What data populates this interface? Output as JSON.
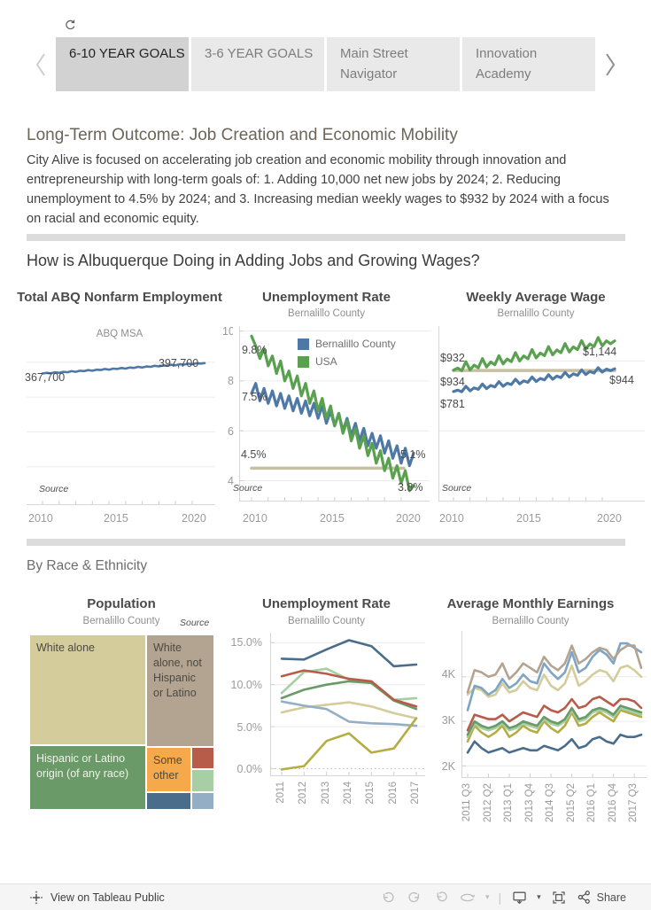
{
  "tabs": {
    "items": [
      {
        "label": "6-10 YEAR GOALS",
        "active": true
      },
      {
        "label": "3-6 YEAR GOALS",
        "active": false
      },
      {
        "label": "Main Street Navigator",
        "active": false
      },
      {
        "label": "Innovation Academy",
        "active": false
      }
    ]
  },
  "intro": {
    "title": "Long-Term Outcome: Job Creation and Economic Mobility",
    "body": "City Alive is focused on accelerating job creation and economic mobility through innovation and entrepreneurship with long-term goals of:  1. Adding 10,000 net new jobs by 2024; 2. Reducing unemployment to 4.5% by 2024; and 3. Increasing median weekly wages to $932 by 2024 with a focus on racial and economic equity."
  },
  "section1": {
    "heading": "How is Albuquerque Doing in Adding Jobs and Growing Wages?"
  },
  "section2": {
    "heading": "By Race & Ethnicity"
  },
  "footer": {
    "brand": "View on Tableau Public",
    "share_label": "Share"
  },
  "chart_data": [
    {
      "type": "line",
      "title": "Total ABQ Nonfarm Employment",
      "subtitle": "ABQ MSA",
      "source_label": "Source",
      "x_ticks": [
        "2010",
        "2015",
        "2020"
      ],
      "xlim": [
        2010,
        2020
      ],
      "ylim": [
        0,
        420000
      ],
      "gridlines": [
        100000,
        200000,
        300000,
        400000
      ],
      "tick_idx": [
        0,
        4,
        8,
        12,
        16,
        20,
        24,
        28,
        32,
        36
      ],
      "lw": 2.6,
      "series": [
        {
          "name": "ABQ MSA",
          "color": "#4e79a7",
          "start_label": "367,700",
          "end_label": "397,700",
          "values": [
            367700,
            369500,
            368400,
            371400,
            369600,
            372500,
            371500,
            374500,
            372700,
            375600,
            374600,
            377600,
            375700,
            378700,
            377700,
            380700,
            378800,
            381800,
            380800,
            383700,
            381900,
            384900,
            383900,
            386800,
            385000,
            388000,
            386900,
            389900,
            388100,
            391100,
            390000,
            393000,
            391200,
            394200,
            393100,
            396100,
            394300,
            397200,
            396200,
            397700
          ]
        }
      ]
    },
    {
      "type": "line",
      "title": "Unemployment Rate",
      "subtitle": "Bernalillo County",
      "source_label": "Source",
      "x_ticks": [
        "2010",
        "2015",
        "2020"
      ],
      "y_tick_labels": [
        "10",
        "8",
        "6",
        "4"
      ],
      "xlim": [
        2010,
        2020
      ],
      "ylim": [
        3.2,
        10.2
      ],
      "gridlines": [
        4,
        6,
        8,
        10
      ],
      "ytick_vals": [
        4,
        6,
        8,
        10
      ],
      "tick_idx": [
        0,
        4,
        8,
        12,
        16,
        20,
        24,
        28,
        32,
        36
      ],
      "lw": 3.2,
      "target": {
        "value": 4.5,
        "label": "4.5%",
        "color": "#c6c0a0",
        "span": [
          0,
          0.94
        ]
      },
      "legend": [
        "Bernalillo County",
        "USA"
      ],
      "series": [
        {
          "name": "Bernalillo County",
          "color": "#4e79a7",
          "start_label": "7.5%",
          "end_label": "5.1%",
          "values": [
            7.5,
            7.9,
            7.2,
            7.7,
            7.1,
            7.6,
            7.0,
            7.5,
            6.9,
            7.4,
            6.8,
            7.3,
            6.7,
            7.2,
            6.6,
            7.1,
            6.5,
            7.0,
            6.3,
            6.8,
            6.2,
            6.7,
            6.0,
            6.5,
            5.8,
            6.3,
            5.6,
            6.1,
            5.4,
            5.9,
            5.3,
            5.8,
            5.1,
            5.6,
            4.9,
            5.4,
            4.7,
            5.3,
            4.6,
            5.1
          ]
        },
        {
          "name": "USA",
          "color": "#59a14f",
          "start_label": "9.8%",
          "end_label": "3.8%",
          "values": [
            9.8,
            9.4,
            8.9,
            9.3,
            8.6,
            9.0,
            8.3,
            8.8,
            8.0,
            8.4,
            7.7,
            8.2,
            7.4,
            7.9,
            7.1,
            7.6,
            6.8,
            7.3,
            6.5,
            7.0,
            6.2,
            6.7,
            5.9,
            6.4,
            5.6,
            6.1,
            5.3,
            5.8,
            5.0,
            5.5,
            4.7,
            5.2,
            4.4,
            4.9,
            4.1,
            4.6,
            3.9,
            4.4,
            3.6,
            3.8
          ]
        }
      ]
    },
    {
      "type": "line",
      "title": "Weekly Average Wage",
      "subtitle": "Bernalillo County",
      "source_label": "Source",
      "x_ticks": [
        "2010",
        "2015",
        "2020"
      ],
      "xlim": [
        2010,
        2020
      ],
      "ylim": [
        0,
        1250
      ],
      "gridlines": [
        500,
        1000
      ],
      "tick_idx": [
        0,
        4,
        8,
        12,
        16,
        20,
        24,
        28,
        32,
        36
      ],
      "lw": 3.2,
      "target": {
        "value": 932,
        "label": "$932",
        "color": "#c6c0a0",
        "span": [
          0,
          1
        ]
      },
      "series": [
        {
          "name": "Bernalillo County",
          "color": "#4e79a7",
          "start_label": "$781",
          "end_label": "$944",
          "values": [
            781,
            791,
            780,
            819,
            786,
            808,
            797,
            835,
            802,
            825,
            814,
            852,
            819,
            841,
            831,
            869,
            836,
            858,
            847,
            885,
            853,
            875,
            864,
            902,
            869,
            892,
            881,
            919,
            886,
            908,
            897,
            936,
            903,
            925,
            914,
            952,
            920,
            942,
            931,
            944
          ]
        },
        {
          "name": "USA",
          "color": "#59a14f",
          "start_label": "$934",
          "end_label": "$1,144",
          "values": [
            934,
            949,
            930,
            995,
            936,
            971,
            951,
            1017,
            957,
            993,
            973,
            1038,
            979,
            1014,
            995,
            1060,
            1000,
            1036,
            1016,
            1082,
            1022,
            1057,
            1038,
            1103,
            1044,
            1079,
            1059,
            1125,
            1065,
            1101,
            1081,
            1146,
            1087,
            1122,
            1103,
            1168,
            1108,
            1144,
            1124,
            1144
          ]
        }
      ]
    },
    {
      "type": "treemap",
      "title": "Population",
      "subtitle": "Bernalillo County",
      "source_label": "Source",
      "cells": [
        {
          "label": "White alone",
          "color": "#d4cc9a"
        },
        {
          "label": "White alone, not Hispanic or Latino",
          "color": "#b3a491"
        },
        {
          "label": "Hispanic or Latino origin (of any race)",
          "color": "#6a9a68"
        },
        {
          "label": "Some other",
          "color": "#f5a94b"
        },
        {
          "label": "",
          "color": "#b85c4a"
        },
        {
          "label": "",
          "color": "#a6cfa4"
        },
        {
          "label": "",
          "color": "#4a6d8c"
        },
        {
          "label": "",
          "color": "#94aec5"
        }
      ]
    },
    {
      "type": "line",
      "title": "Unemployment Rate",
      "subtitle": "Bernalillo County",
      "x_labels": [
        "2011",
        "2012",
        "2013",
        "2014",
        "2015",
        "2016",
        "2017"
      ],
      "x_label_idx": [
        0,
        1,
        2,
        3,
        4,
        5,
        6
      ],
      "y_tick_labels": [
        "15.0%",
        "10.0%",
        "5.0%",
        "0.0%"
      ],
      "ylim": [
        -0.8,
        16.2
      ],
      "gridlines": [
        5,
        10,
        15
      ],
      "dotted": [
        0
      ],
      "ytick_vals": [
        0,
        5,
        10,
        15
      ],
      "tick_idx": [
        0,
        1,
        2,
        3,
        4,
        5,
        6
      ],
      "lw": 2.6,
      "series": [
        {
          "color": "#d4cc9a",
          "values": [
            6.7,
            7.3,
            7.6,
            7.9,
            7.4,
            6.6,
            6.0
          ]
        },
        {
          "color": "#94aec5",
          "values": [
            8.0,
            7.5,
            7.1,
            5.6,
            5.4,
            5.3,
            5.1
          ]
        },
        {
          "color": "#a6cfa4",
          "values": [
            9.0,
            11.5,
            11.9,
            10.6,
            10.2,
            8.2,
            8.4
          ]
        },
        {
          "color": "#6a9a68",
          "values": [
            8.4,
            9.4,
            10.0,
            10.4,
            10.2,
            8.1,
            7.1
          ]
        },
        {
          "color": "#b85c4a",
          "values": [
            11.0,
            11.7,
            11.3,
            10.7,
            10.4,
            8.2,
            7.4
          ]
        },
        {
          "color": "#b5ad43",
          "values": [
            -0.1,
            0.3,
            3.3,
            4.2,
            1.9,
            2.4,
            6.0
          ]
        },
        {
          "color": "#4a6d8c",
          "values": [
            13.1,
            13.0,
            14.2,
            15.3,
            14.6,
            12.2,
            12.4
          ]
        }
      ]
    },
    {
      "type": "line",
      "title": "Average Monthly Earnings",
      "subtitle": "Bernalillo County",
      "x_labels": [
        "2011 Q3",
        "2012 Q2",
        "2013 Q1",
        "2013 Q4",
        "2014 Q3",
        "2015 Q2",
        "2016 Q1",
        "2016 Q4",
        "2017 Q3"
      ],
      "x_label_idx": [
        0,
        3,
        6,
        9,
        12,
        15,
        18,
        21,
        24
      ],
      "y_tick_labels": [
        "4K",
        "3K",
        "2K"
      ],
      "ylim": [
        1750,
        4950
      ],
      "gridlines": [
        2000,
        3000,
        4000
      ],
      "ytick_vals": [
        2000,
        3000,
        4000
      ],
      "tick_idx": [
        0,
        3,
        6,
        9,
        12,
        15,
        18,
        21,
        24
      ],
      "lw": 2.6,
      "series": [
        {
          "color": "#4a6d8c",
          "values": [
            2300,
            2550,
            2400,
            2300,
            2350,
            2400,
            2300,
            2350,
            2400,
            2350,
            2350,
            2450,
            2400,
            2350,
            2450,
            2600,
            2400,
            2450,
            2600,
            2650,
            2550,
            2500,
            2700,
            2650,
            2650,
            2700
          ]
        },
        {
          "color": "#b5ad43",
          "values": [
            2550,
            2900,
            2750,
            2650,
            2750,
            2900,
            2650,
            2750,
            2900,
            2800,
            2750,
            3000,
            2850,
            2750,
            2900,
            3200,
            2900,
            2950,
            3100,
            3200,
            3100,
            3000,
            3250,
            3200,
            3150,
            3100
          ]
        },
        {
          "color": "#a6cfa4",
          "values": [
            2650,
            2950,
            2850,
            2800,
            2850,
            2950,
            2800,
            2850,
            2950,
            2900,
            2850,
            3050,
            2950,
            2900,
            3000,
            3250,
            3000,
            3050,
            3200,
            3250,
            3200,
            3100,
            3300,
            3250,
            3200,
            3150
          ]
        },
        {
          "color": "#6a9a68",
          "values": [
            2700,
            3000,
            2900,
            2850,
            2900,
            3000,
            2850,
            2900,
            3000,
            2950,
            2900,
            3100,
            3000,
            2950,
            3050,
            3300,
            3050,
            3100,
            3250,
            3300,
            3250,
            3150,
            3350,
            3300,
            3250,
            3200
          ]
        },
        {
          "color": "#b85c4a",
          "values": [
            2800,
            3150,
            3100,
            3050,
            3050,
            3150,
            3000,
            3100,
            3200,
            3150,
            3100,
            3350,
            3250,
            3200,
            3300,
            3500,
            3300,
            3350,
            3500,
            3550,
            3450,
            3350,
            3500,
            3500,
            3450,
            3300
          ]
        },
        {
          "color": "#d4cc9a",
          "values": [
            3600,
            3750,
            3700,
            3550,
            3600,
            3850,
            3650,
            3700,
            3900,
            3750,
            3700,
            4050,
            3800,
            3700,
            3850,
            4250,
            3800,
            3900,
            4050,
            4150,
            4100,
            3900,
            4200,
            4250,
            4150,
            4000
          ]
        },
        {
          "color": "#7fa5c4",
          "values": [
            3250,
            3800,
            3750,
            3600,
            3700,
            3950,
            3750,
            3850,
            4050,
            3900,
            3850,
            4300,
            4100,
            3950,
            4100,
            4550,
            4100,
            4200,
            4450,
            4600,
            4500,
            4300,
            4750,
            4750,
            4650,
            4550
          ]
        },
        {
          "color": "#b3a491",
          "values": [
            3650,
            4150,
            4100,
            4000,
            4050,
            4300,
            3950,
            4100,
            4300,
            4200,
            4100,
            4450,
            4250,
            4150,
            4300,
            4700,
            4300,
            4400,
            4550,
            4650,
            4600,
            4400,
            4600,
            4700,
            4700,
            4200
          ]
        }
      ]
    }
  ]
}
